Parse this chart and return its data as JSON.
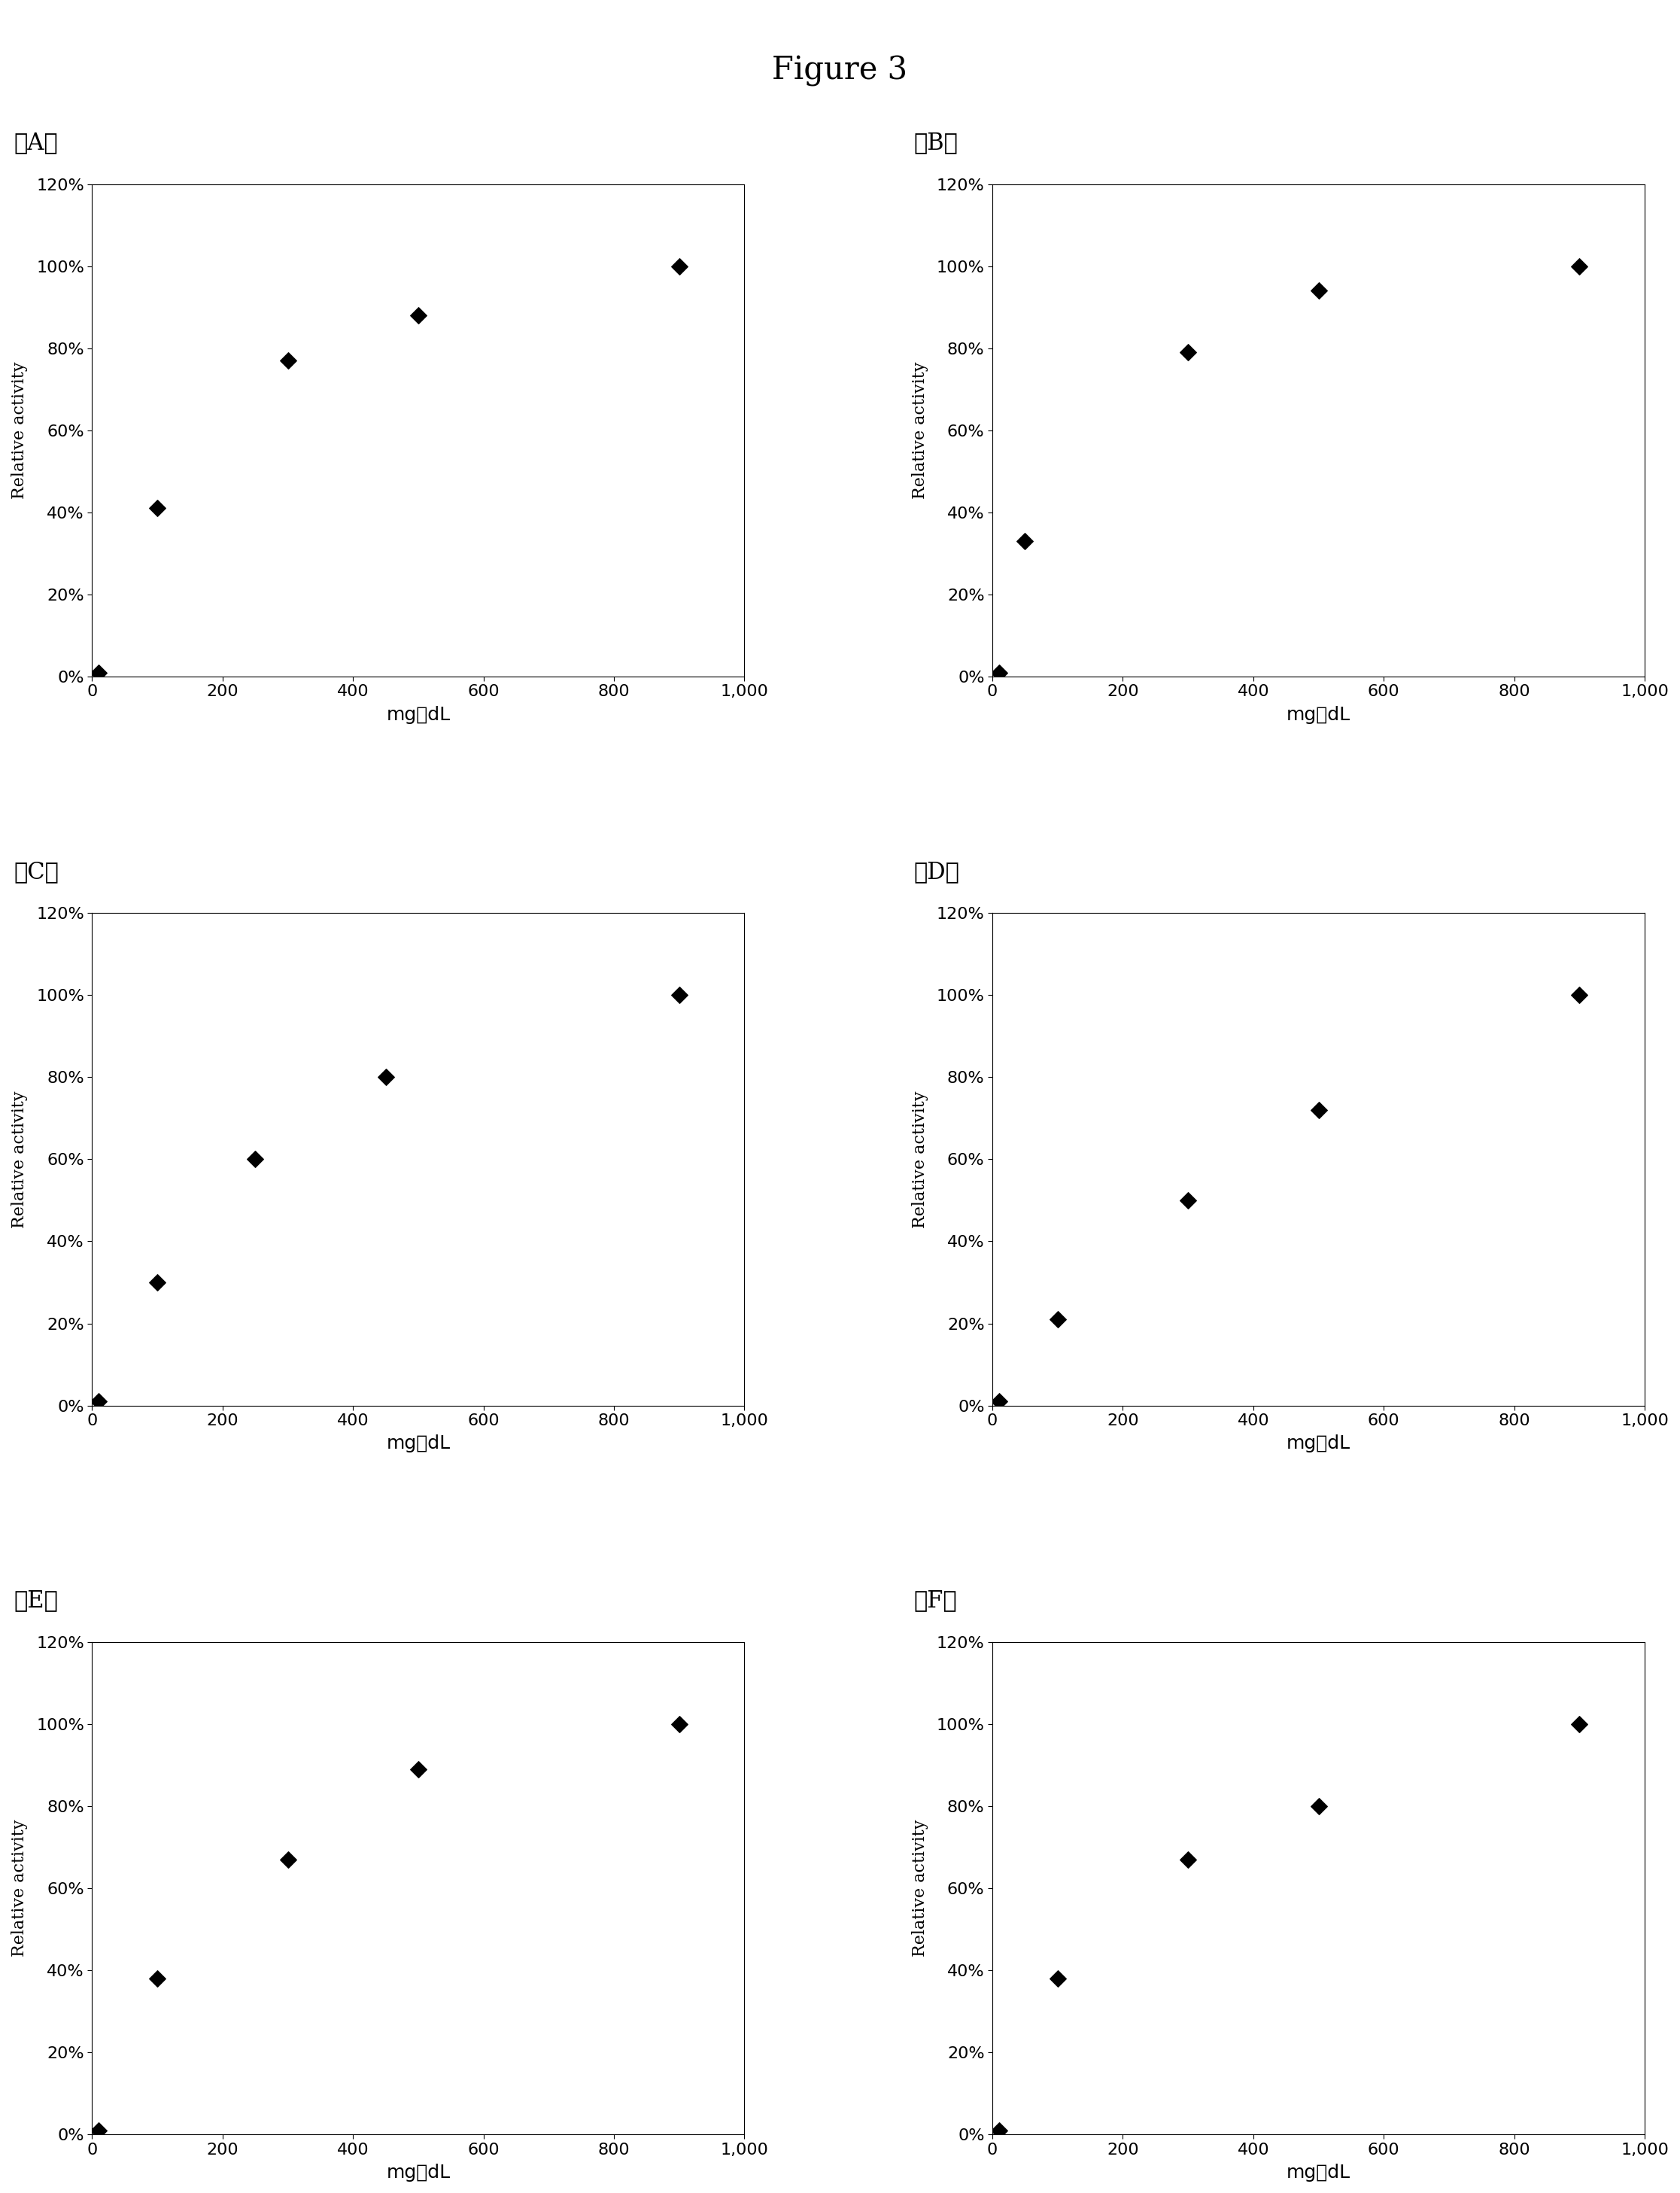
{
  "title": "Figure 3",
  "title_fontsize": 30,
  "subplots": [
    {
      "label": "（A）",
      "x": [
        10,
        100,
        300,
        500,
        900
      ],
      "y": [
        1,
        41,
        77,
        88,
        100
      ]
    },
    {
      "label": "（B）",
      "x": [
        10,
        50,
        300,
        500,
        900
      ],
      "y": [
        1,
        33,
        79,
        94,
        100
      ]
    },
    {
      "label": "（C）",
      "x": [
        10,
        100,
        250,
        450,
        900
      ],
      "y": [
        1,
        30,
        60,
        80,
        100
      ]
    },
    {
      "label": "（D）",
      "x": [
        10,
        100,
        300,
        500,
        900
      ],
      "y": [
        1,
        21,
        50,
        72,
        100
      ]
    },
    {
      "label": "（E）",
      "x": [
        10,
        100,
        300,
        500,
        900
      ],
      "y": [
        1,
        38,
        67,
        89,
        100
      ]
    },
    {
      "label": "（F）",
      "x": [
        10,
        100,
        300,
        500,
        900
      ],
      "y": [
        1,
        38,
        67,
        80,
        100
      ]
    }
  ],
  "xlabel": "mg／dL",
  "ylabel": "Relative activity",
  "xlim": [
    0,
    1000
  ],
  "ylim": [
    0,
    120
  ],
  "yticks": [
    0,
    20,
    40,
    60,
    80,
    100,
    120
  ],
  "xticks": [
    0,
    200,
    400,
    600,
    800,
    1000
  ],
  "xticklabels": [
    "0",
    "200",
    "400",
    "600",
    "800",
    "1,000"
  ],
  "yticklabels": [
    "0%",
    "20%",
    "40%",
    "60%",
    "80%",
    "100%",
    "120%"
  ],
  "marker": "D",
  "marker_color": "#000000",
  "marker_size": 120,
  "background_color": "#ffffff",
  "xlabel_fontsize": 18,
  "ylabel_fontsize": 16,
  "tick_fontsize": 16,
  "sublabel_fontsize": 22
}
